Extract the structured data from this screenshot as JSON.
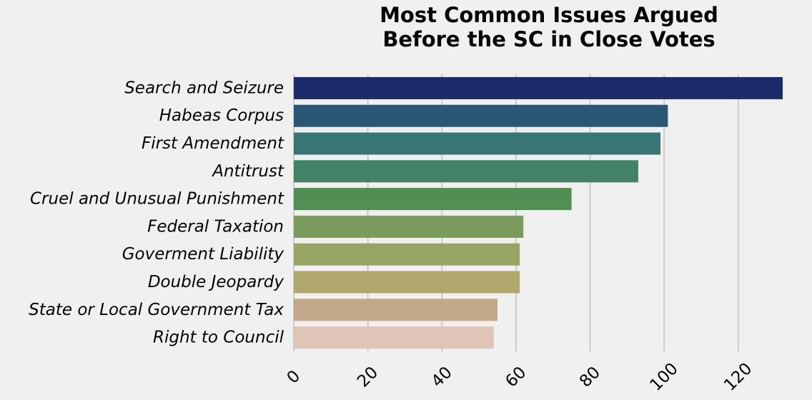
{
  "chart_data": {
    "type": "bar",
    "orientation": "horizontal",
    "title_lines": [
      "Most Common Issues Argued",
      "Before the SC in Close Votes"
    ],
    "categories": [
      "Search and Seizure",
      "Habeas Corpus",
      "First Amendment",
      "Antitrust",
      "Cruel and Unusual Punishment",
      "Federal Taxation",
      "Goverment Liability",
      "Double Jeopardy",
      "State or Local Government Tax",
      "Right to Council"
    ],
    "values": [
      132,
      101,
      99,
      93,
      75,
      62,
      61,
      61,
      55,
      54
    ],
    "colors": [
      "#1c2b6c",
      "#2a5774",
      "#377674",
      "#438267",
      "#518e53",
      "#7b9b5c",
      "#96a563",
      "#b0a76c",
      "#c2a789",
      "#e0c4b8"
    ],
    "xlim": [
      0,
      132
    ],
    "xticks": [
      0,
      20,
      40,
      60,
      80,
      100,
      120
    ],
    "xlabel": "",
    "ylabel": "",
    "grid": "vertical",
    "background": "#f0f0f0",
    "grid_color": "#cbcbcb"
  }
}
